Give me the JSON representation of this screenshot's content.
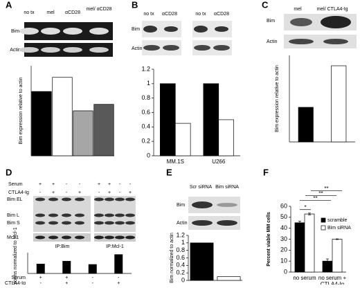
{
  "panels": [
    "A",
    "B",
    "C",
    "D",
    "E",
    "F"
  ],
  "blots": {
    "A": {
      "lanes": [
        "no tx",
        "mel",
        "αCD28",
        "mel/ αCD28"
      ],
      "rows": [
        "Bim",
        "Actin"
      ]
    },
    "B": {
      "lanes": [
        "no tx",
        "αCD28",
        "no tx",
        "αCD28"
      ],
      "rows": [
        "Bim",
        "Actin"
      ]
    },
    "C": {
      "lanes": [
        "mel",
        "mel/ CTLA4-Ig"
      ],
      "rows": [
        "Bim",
        "Actin"
      ]
    },
    "D": {
      "conditions": [
        {
          "label": "Serum",
          "signs": [
            "+",
            "+",
            "-",
            "-",
            "+",
            "+",
            "-",
            "-"
          ]
        },
        {
          "label": "CTLA4-Ig",
          "signs": [
            "-",
            "+",
            "-",
            "+",
            "-",
            "+",
            "-",
            "+"
          ]
        }
      ],
      "rows": [
        "Bim EL",
        "Bim L",
        "Bim S",
        "Mcl-1"
      ],
      "ip": [
        "IP:Bim",
        "IP:Mcl-1"
      ]
    },
    "E": {
      "lanes": [
        "Scr siRNA",
        "Bim siRNA"
      ],
      "rows": [
        "Bim",
        "Actin"
      ]
    }
  },
  "chart_data": [
    {
      "type": "bar",
      "ylabel": "Bim expression relative to actin",
      "values": [
        1,
        1.22,
        0.7,
        0.8
      ],
      "colors": [
        "#000000",
        "#ffffff",
        "#a6a6a6",
        "#595959"
      ],
      "ylim": [
        0,
        1.4
      ]
    },
    {
      "type": "bar",
      "categories": [
        "MM.1S",
        "U266"
      ],
      "series": [
        {
          "color": "#000000",
          "values": [
            1,
            1
          ]
        },
        {
          "color": "#ffffff",
          "values": [
            0.45,
            0.5
          ]
        }
      ],
      "ylim": [
        0,
        1.2
      ],
      "yticks": [
        0,
        0.2,
        0.4,
        0.6,
        0.8,
        1,
        1.2
      ]
    },
    {
      "type": "bar",
      "ylabel": "Bim expression relative to actin",
      "values": [
        1,
        2.2
      ],
      "colors": [
        "#000000",
        "#ffffff"
      ],
      "ylim": [
        0,
        2.5
      ]
    },
    {
      "type": "bar",
      "ylabel": "Bim isoforms normalized to Mcl-1",
      "values": [
        1,
        1.3,
        0.95,
        2
      ],
      "colors": [
        "#000000",
        "#000000",
        "#000000",
        "#000000"
      ],
      "ylim": [
        0,
        2.2
      ],
      "conditions": [
        {
          "label": "Serum",
          "signs": [
            "+",
            "+",
            "-",
            "-"
          ]
        },
        {
          "label": "CTLA4-Ig",
          "signs": [
            "-",
            "+",
            "-",
            "+"
          ]
        }
      ]
    },
    {
      "type": "bar",
      "ylabel": "Bim normalized to actin",
      "values": [
        1,
        0.1
      ],
      "colors": [
        "#000000",
        "#ffffff"
      ],
      "ylim": [
        0,
        1.2
      ],
      "yticks": [
        0,
        0.2,
        0.4,
        0.6,
        0.8,
        1,
        1.2
      ]
    },
    {
      "type": "bar",
      "ylabel": "Percent viable MM cells",
      "categories": [
        "no serum",
        "no serum + CTLA4-Ig"
      ],
      "series": [
        {
          "name": "scramble",
          "color": "#000000",
          "values": [
            45,
            10
          ],
          "errors": [
            1.5,
            2
          ]
        },
        {
          "name": "Bim siRNA",
          "color": "#ffffff",
          "values": [
            53,
            30
          ],
          "errors": [
            0.8,
            0.3
          ]
        }
      ],
      "ylim": [
        0,
        60
      ],
      "yticks": [
        0,
        10,
        20,
        30,
        40,
        50,
        60
      ],
      "annotations": [
        "*",
        "**",
        "**",
        "**"
      ]
    }
  ]
}
